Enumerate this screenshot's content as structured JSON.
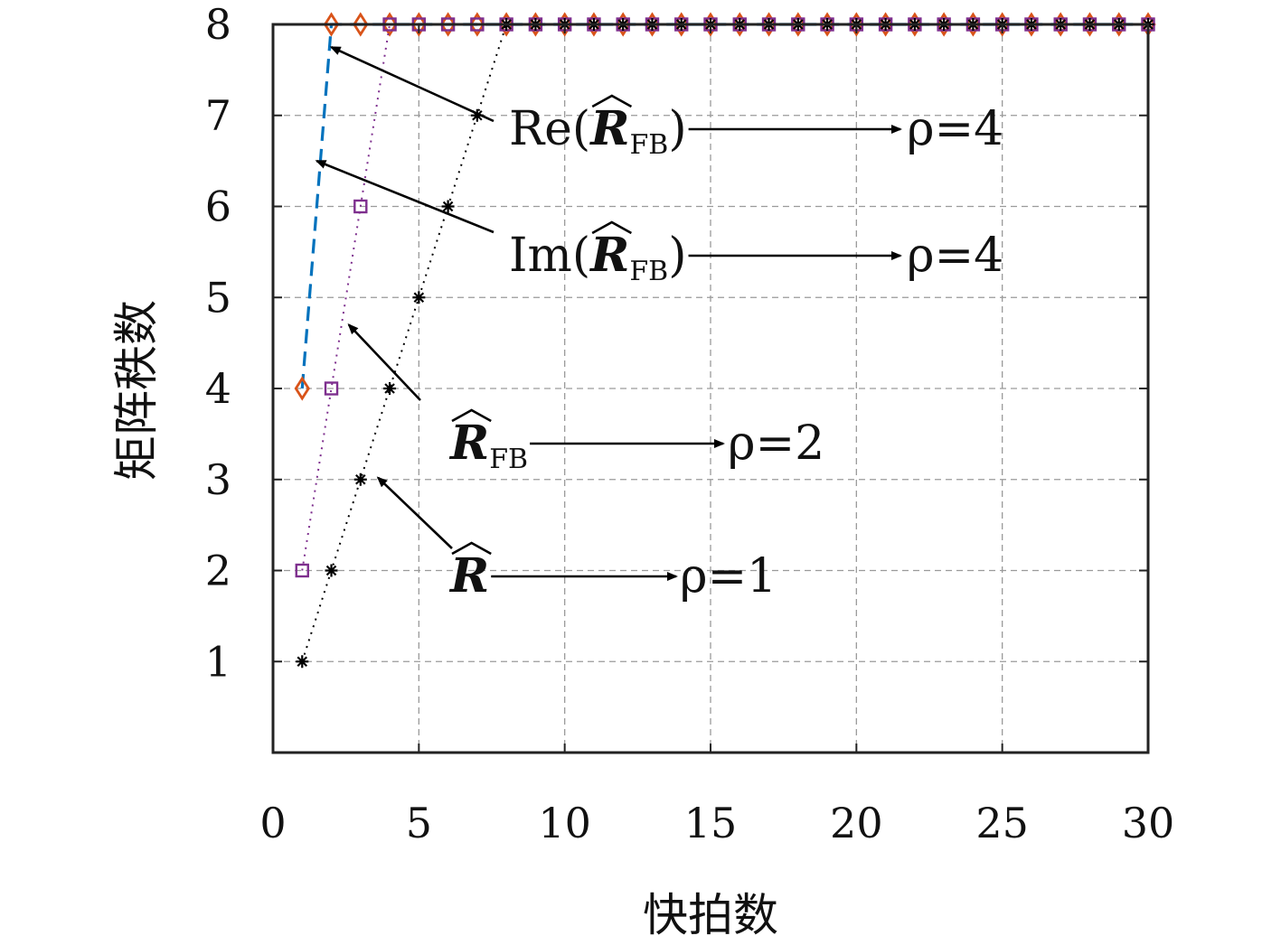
{
  "chart_data": {
    "type": "line",
    "xlabel": "快拍数",
    "ylabel": "矩阵秩数",
    "xlim": [
      0,
      30
    ],
    "ylim": [
      0,
      8
    ],
    "xticks": [
      "0",
      "5",
      "10",
      "15",
      "20",
      "25",
      "30"
    ],
    "yticks": [
      "1",
      "2",
      "3",
      "4",
      "5",
      "6",
      "7",
      "8"
    ],
    "grid": true,
    "series": [
      {
        "key": "re",
        "name": "Re(R̂FB)",
        "color": "#0072BD",
        "line": "dashed",
        "marker": "none",
        "x": [
          1,
          2,
          3,
          4,
          5,
          6,
          7,
          8,
          9,
          10,
          11,
          12,
          13,
          14,
          15,
          16,
          17,
          18,
          19,
          20,
          21,
          22,
          23,
          24,
          25,
          26,
          27,
          28,
          29,
          30
        ],
        "y": [
          4,
          8,
          8,
          8,
          8,
          8,
          8,
          8,
          8,
          8,
          8,
          8,
          8,
          8,
          8,
          8,
          8,
          8,
          8,
          8,
          8,
          8,
          8,
          8,
          8,
          8,
          8,
          8,
          8,
          8
        ]
      },
      {
        "key": "im",
        "name": "Im(R̂FB)",
        "color": "#D95319",
        "line": "none",
        "marker": "diamond",
        "x": [
          1,
          2,
          3,
          4,
          5,
          6,
          7,
          8,
          9,
          10,
          11,
          12,
          13,
          14,
          15,
          16,
          17,
          18,
          19,
          20,
          21,
          22,
          23,
          24,
          25,
          26,
          27,
          28,
          29,
          30
        ],
        "y": [
          4,
          8,
          8,
          8,
          8,
          8,
          8,
          8,
          8,
          8,
          8,
          8,
          8,
          8,
          8,
          8,
          8,
          8,
          8,
          8,
          8,
          8,
          8,
          8,
          8,
          8,
          8,
          8,
          8,
          8
        ]
      },
      {
        "key": "fb",
        "name": "R̂FB",
        "color": "#7E2F8E",
        "line": "dotted",
        "marker": "square",
        "x": [
          1,
          2,
          3,
          4,
          5,
          6,
          7,
          8,
          9,
          10,
          11,
          12,
          13,
          14,
          15,
          16,
          17,
          18,
          19,
          20,
          21,
          22,
          23,
          24,
          25,
          26,
          27,
          28,
          29,
          30
        ],
        "y": [
          2,
          4,
          6,
          8,
          8,
          8,
          8,
          8,
          8,
          8,
          8,
          8,
          8,
          8,
          8,
          8,
          8,
          8,
          8,
          8,
          8,
          8,
          8,
          8,
          8,
          8,
          8,
          8,
          8,
          8
        ]
      },
      {
        "key": "r",
        "name": "R̂",
        "color": "#000000",
        "line": "dotted",
        "marker": "asterisk",
        "x": [
          1,
          2,
          3,
          4,
          5,
          6,
          7,
          8,
          9,
          10,
          11,
          12,
          13,
          14,
          15,
          16,
          17,
          18,
          19,
          20,
          21,
          22,
          23,
          24,
          25,
          26,
          27,
          28,
          29,
          30
        ],
        "y": [
          1,
          2,
          3,
          4,
          5,
          6,
          7,
          8,
          8,
          8,
          8,
          8,
          8,
          8,
          8,
          8,
          8,
          8,
          8,
          8,
          8,
          8,
          8,
          8,
          8,
          8,
          8,
          8,
          8,
          8
        ]
      }
    ],
    "annotations": [
      {
        "key": "re",
        "prefix": "Re(",
        "symbol": "R",
        "sub": "FB",
        "suffix": ")",
        "rho": "ρ=4",
        "arrow_to": [
          2,
          7.75
        ]
      },
      {
        "key": "im",
        "prefix": "Im(",
        "symbol": "R",
        "sub": "FB",
        "suffix": ")",
        "rho": "ρ=4",
        "arrow_to": [
          1.5,
          6.5
        ]
      },
      {
        "key": "fb",
        "prefix": "",
        "symbol": "R",
        "sub": "FB",
        "suffix": "",
        "rho": "ρ=2",
        "arrow_to": [
          2.6,
          4.7
        ]
      },
      {
        "key": "r",
        "prefix": "",
        "symbol": "R",
        "sub": "",
        "suffix": "",
        "rho": "ρ=1",
        "arrow_to": [
          3.6,
          3.02
        ]
      }
    ]
  }
}
